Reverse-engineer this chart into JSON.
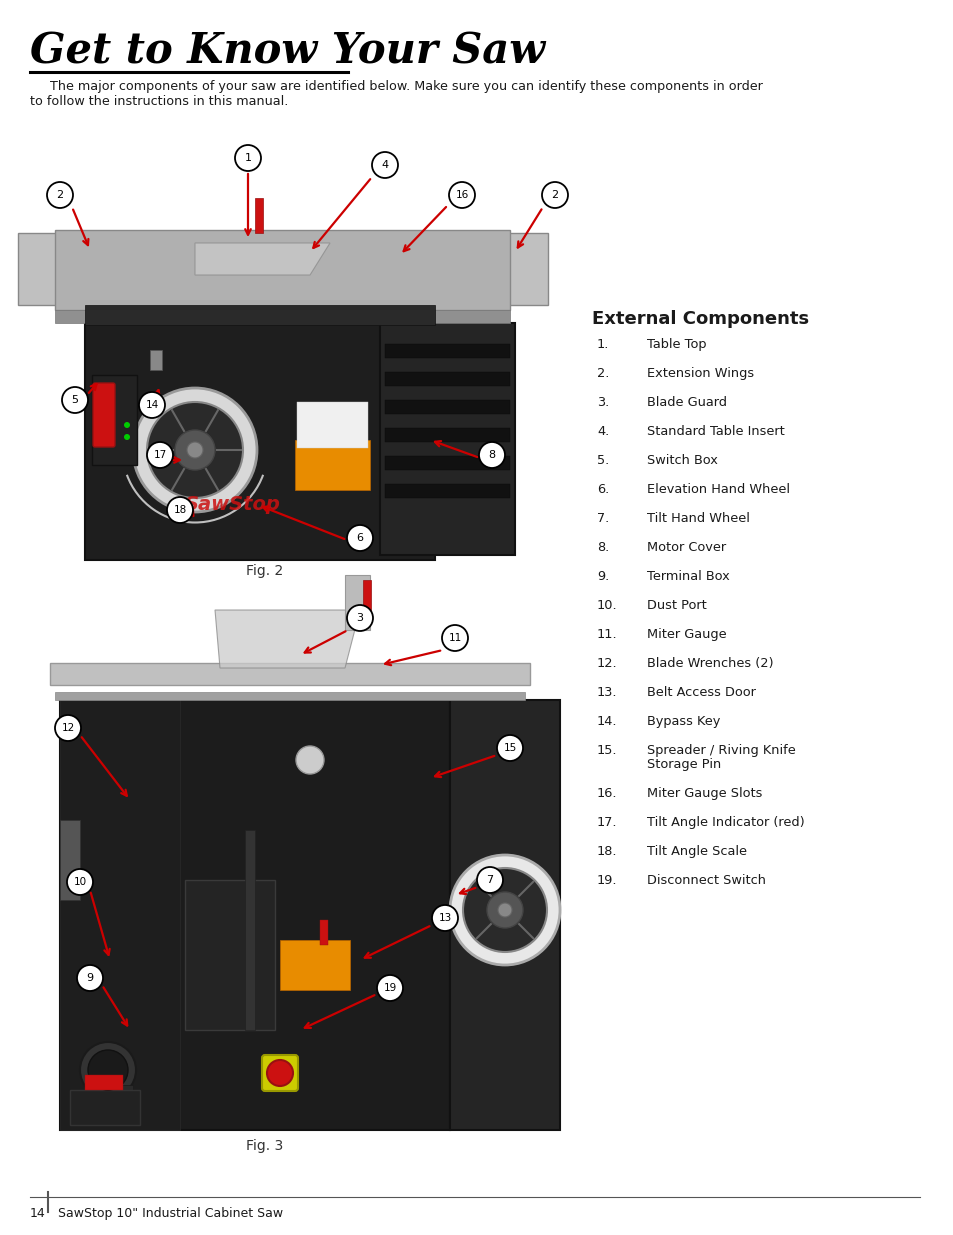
{
  "title": "Get to Know Your Saw",
  "intro_line1": "     The major components of your saw are identified below. Make sure you can identify these components in order",
  "intro_line2": "to follow the instructions in this manual.",
  "section_title": "External Components",
  "fig2_caption": "Fig. 2",
  "fig3_caption": "Fig. 3",
  "footer_page": "14",
  "footer_text": "SawStop 10\" Industrial Cabinet Saw",
  "bg_color": "#ffffff",
  "text_color": "#1a1a1a",
  "red_arrow": "#cc0000",
  "components": [
    [
      "1.",
      "Table Top"
    ],
    [
      "2.",
      "Extension Wings"
    ],
    [
      "3.",
      "Blade Guard"
    ],
    [
      "4.",
      "Standard Table Insert"
    ],
    [
      "5.",
      "Switch Box"
    ],
    [
      "6.",
      "Elevation Hand Wheel"
    ],
    [
      "7.",
      "Tilt Hand Wheel"
    ],
    [
      "8.",
      "Motor Cover"
    ],
    [
      "9.",
      "Terminal Box"
    ],
    [
      "10.",
      "Dust Port"
    ],
    [
      "11.",
      "Miter Gauge"
    ],
    [
      "12.",
      "Blade Wrenches (2)"
    ],
    [
      "13.",
      "Belt Access Door"
    ],
    [
      "14.",
      "Bypass Key"
    ],
    [
      "15.",
      "Spreader / Riving Knife",
      "Storage Pin"
    ],
    [
      "16.",
      "Miter Gauge Slots"
    ],
    [
      "17.",
      "Tilt Angle Indicator (red)"
    ],
    [
      "18.",
      "Tilt Angle Scale"
    ],
    [
      "19.",
      "Disconnect Switch"
    ]
  ]
}
